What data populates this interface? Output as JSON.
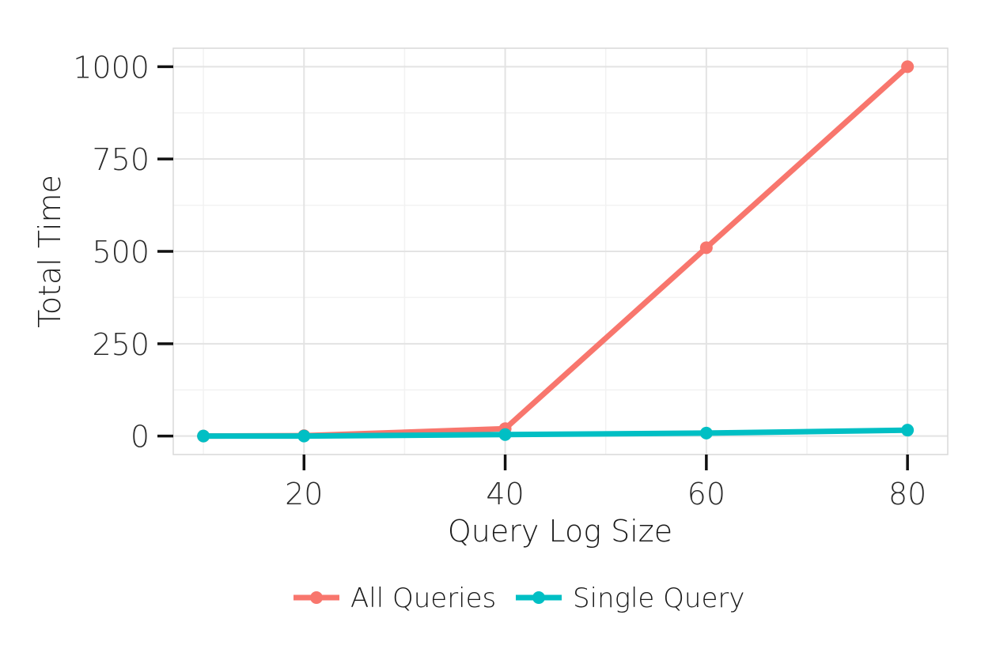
{
  "chart_data": {
    "type": "line",
    "xlabel": "Query Log Size",
    "ylabel": "Total Time",
    "xlim": [
      7,
      84
    ],
    "ylim": [
      -50,
      1050
    ],
    "x_ticks": [
      20,
      40,
      60,
      80
    ],
    "y_ticks": [
      0,
      250,
      500,
      750,
      1000
    ],
    "x_minor_ticks": [
      30,
      50,
      70
    ],
    "y_minor_ticks": [
      125,
      375,
      625,
      875
    ],
    "grid": true,
    "legend_position": "bottom",
    "series": [
      {
        "name": "All Queries",
        "color": "#F8766D",
        "x": [
          10,
          20,
          40,
          60,
          80
        ],
        "y": [
          0,
          1,
          20,
          510,
          1000
        ]
      },
      {
        "name": "Single Query",
        "color": "#00BFC4",
        "x": [
          10,
          20,
          40,
          60,
          80
        ],
        "y": [
          0,
          0,
          4,
          8,
          16
        ]
      }
    ]
  }
}
